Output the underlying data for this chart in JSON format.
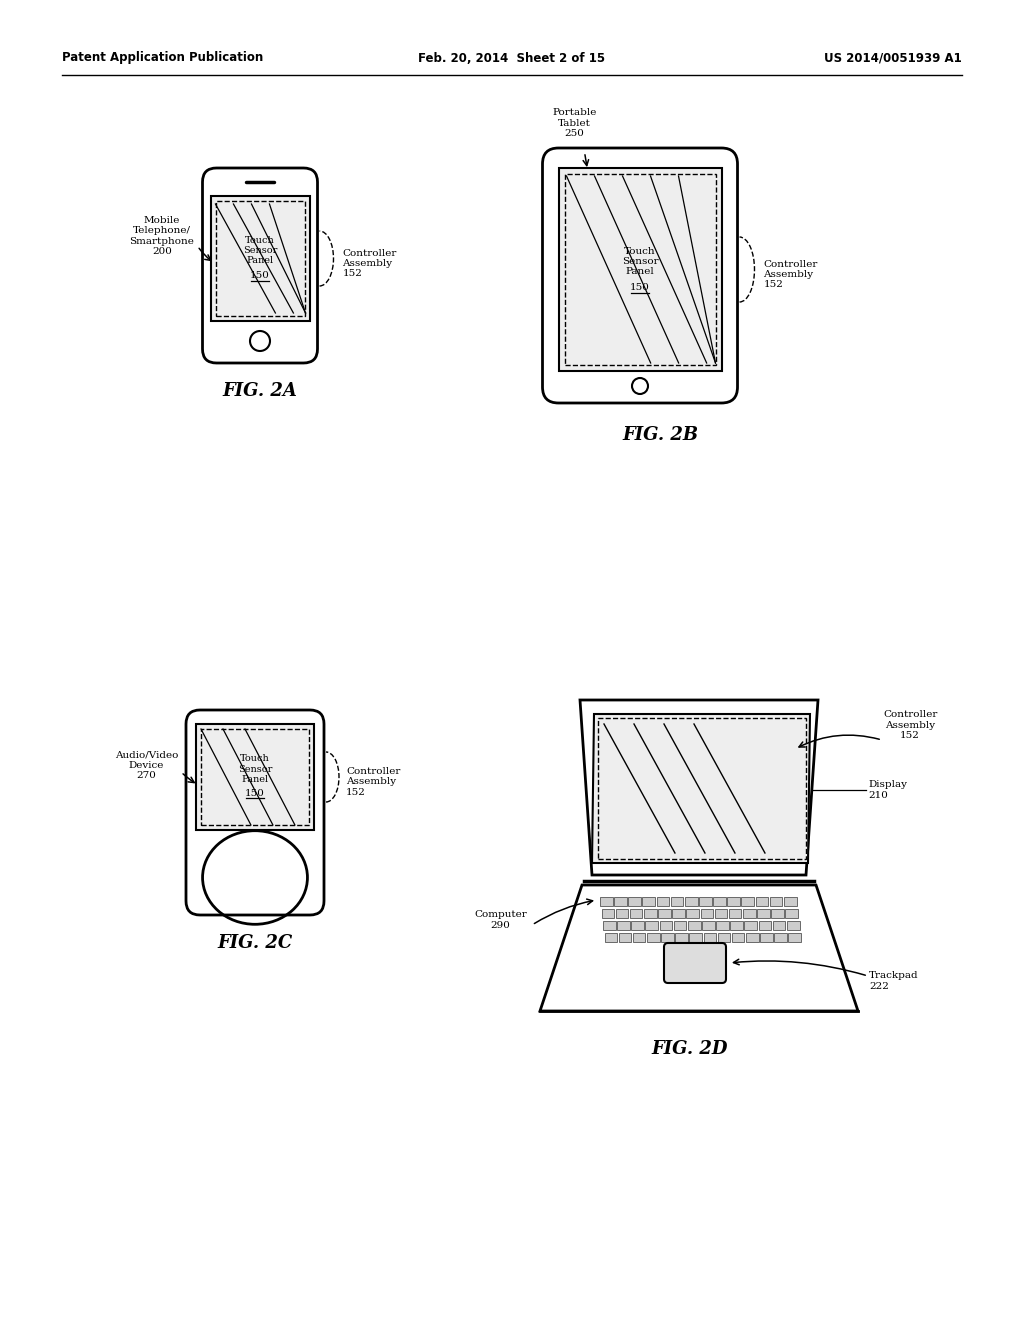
{
  "bg_color": "#ffffff",
  "header_left": "Patent Application Publication",
  "header_mid": "Feb. 20, 2014  Sheet 2 of 15",
  "header_right": "US 2014/0051939 A1",
  "fig_width": 1024,
  "fig_height": 1320
}
